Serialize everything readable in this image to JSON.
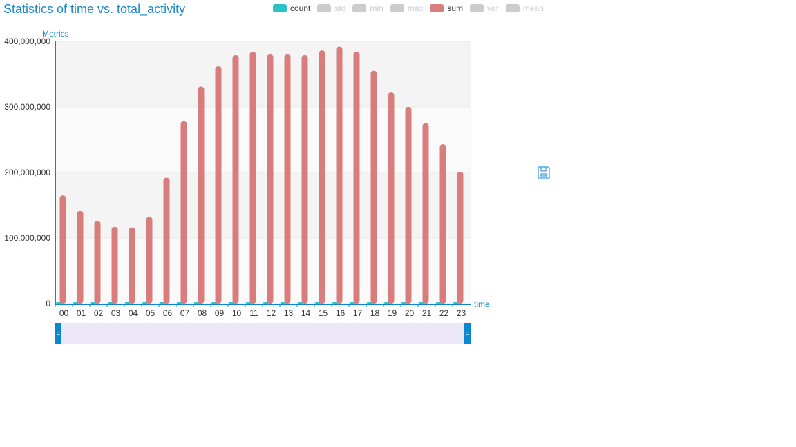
{
  "title": "Statistics of time vs. total_activity",
  "legend": [
    {
      "name": "count",
      "color": "#29c3c6",
      "active": true
    },
    {
      "name": "std",
      "color": "#cccccc",
      "active": false
    },
    {
      "name": "min",
      "color": "#cccccc",
      "active": false
    },
    {
      "name": "max",
      "color": "#cccccc",
      "active": false
    },
    {
      "name": "sum",
      "color": "#d87c7c",
      "active": true
    },
    {
      "name": "var",
      "color": "#cccccc",
      "active": false
    },
    {
      "name": "mean",
      "color": "#cccccc",
      "active": false
    }
  ],
  "toolbox": {
    "save_icon": "save-icon"
  },
  "chart_data": {
    "type": "bar",
    "xlabel": "time",
    "ylabel": "Metrics",
    "ylim": [
      0,
      400000000
    ],
    "yticks": [
      0,
      100000000,
      200000000,
      300000000,
      400000000
    ],
    "ytick_labels": [
      "0",
      "100,000,000",
      "200,000,000",
      "300,000,000",
      "400,000,000"
    ],
    "grid": true,
    "legend_position": "top",
    "categories": [
      "00",
      "01",
      "02",
      "03",
      "04",
      "05",
      "06",
      "07",
      "08",
      "09",
      "10",
      "11",
      "12",
      "13",
      "14",
      "15",
      "16",
      "17",
      "18",
      "19",
      "20",
      "21",
      "22",
      "23"
    ],
    "series": [
      {
        "name": "count",
        "color": "#29c3c6",
        "values": [
          300000,
          280000,
          260000,
          240000,
          240000,
          260000,
          320000,
          380000,
          420000,
          440000,
          450000,
          450000,
          450000,
          450000,
          450000,
          450000,
          450000,
          450000,
          440000,
          420000,
          400000,
          380000,
          360000,
          330000
        ]
      },
      {
        "name": "sum",
        "color": "#d87c7c",
        "values": [
          165000000,
          141000000,
          126000000,
          117000000,
          116000000,
          132000000,
          192000000,
          278000000,
          331000000,
          362000000,
          379000000,
          384000000,
          380000000,
          380000000,
          379000000,
          386000000,
          392000000,
          384000000,
          355000000,
          322000000,
          300000000,
          275000000,
          243000000,
          201000000
        ]
      }
    ]
  }
}
